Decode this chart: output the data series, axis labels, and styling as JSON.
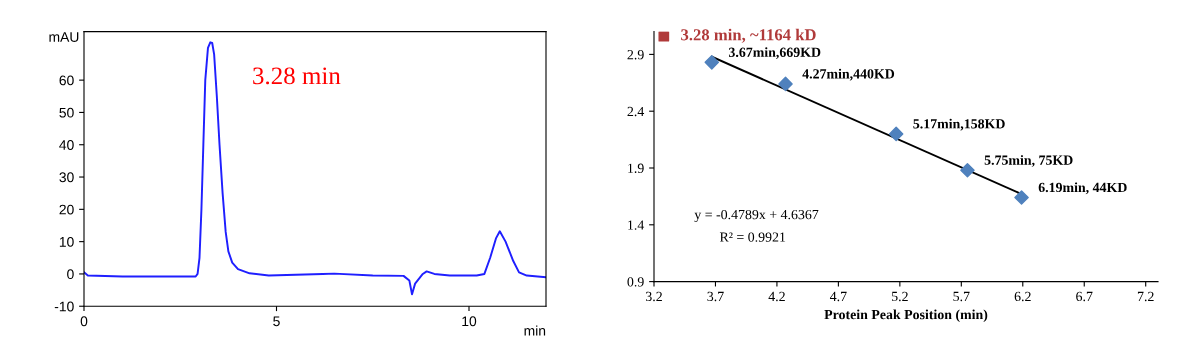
{
  "chart_data": [
    {
      "type": "line",
      "xlabel": "min",
      "ylabel": "mAU",
      "xlim": [
        0,
        12
      ],
      "ylim": [
        -10,
        75
      ],
      "xticks": [
        0,
        5,
        10
      ],
      "yticks": [
        -10,
        0,
        10,
        20,
        30,
        40,
        50,
        60
      ],
      "grid": false,
      "marker": "none",
      "line_style": "solid",
      "annotations": [
        {
          "text": "3.28 min",
          "x": 3.28,
          "y": 71.7
        }
      ],
      "series": [
        {
          "color": "#1f1fff",
          "x": [
            0,
            0.1,
            1,
            2,
            2.9,
            2.95,
            3.0,
            3.05,
            3.1,
            3.15,
            3.22,
            3.28,
            3.33,
            3.38,
            3.45,
            3.52,
            3.6,
            3.68,
            3.75,
            3.85,
            4.0,
            4.3,
            4.8,
            6.2,
            6.5,
            7.5,
            8.3,
            8.45,
            8.52,
            8.6,
            8.8,
            8.9,
            9.1,
            9.5,
            10.2,
            10.4,
            10.55,
            10.7,
            10.8,
            10.95,
            11.15,
            11.3,
            11.5,
            12.0
          ],
          "values": [
            0.5,
            -0.5,
            -0.8,
            -0.8,
            -0.8,
            0,
            5,
            20,
            40,
            60,
            70,
            71.7,
            71.5,
            68,
            55,
            40,
            25,
            13,
            7,
            3.5,
            1.5,
            0.2,
            -0.5,
            0,
            0.1,
            -0.5,
            -0.6,
            -2,
            -6.3,
            -3,
            0,
            0.8,
            0,
            -0.5,
            -0.5,
            0,
            5,
            11,
            13.2,
            10,
            4,
            0.5,
            -0.5,
            -1
          ]
        }
      ]
    },
    {
      "type": "scatter",
      "xlabel": "Protein Peak Position (min)",
      "xlim": [
        3.2,
        7.3
      ],
      "ylim": [
        0.9,
        3.1
      ],
      "xticks": [
        3.2,
        3.7,
        4.2,
        4.7,
        5.2,
        5.7,
        6.2,
        6.7,
        7.2
      ],
      "yticks": [
        0.9,
        1.4,
        1.9,
        2.4,
        2.9
      ],
      "grid": false,
      "legend": false,
      "annotations": [
        "y = -0.4789x + 4.6367",
        "R² = 0.9921"
      ],
      "series": [
        {
          "color": "#4f81bd",
          "marker": "diamond",
          "x": [
            3.67,
            4.27,
            5.17,
            5.75,
            6.19
          ],
          "values": [
            2.83,
            2.64,
            2.2,
            1.88,
            1.64
          ],
          "value_labels": [
            "3.67min,669KD",
            "4.27min,440KD",
            "5.17min,158KD",
            "5.75min, 75KD",
            "6.19min, 44KD"
          ]
        },
        {
          "type": "line",
          "color": "#000000",
          "marker": "none",
          "line_style": "solid",
          "x": [
            3.67,
            6.19
          ],
          "values": [
            2.88,
            1.67
          ]
        },
        {
          "name": "3.28 min, ~1164 kD",
          "color": "#b03a3a",
          "marker": "square",
          "x": [
            3.28
          ],
          "values": [
            3.06
          ]
        }
      ]
    }
  ]
}
